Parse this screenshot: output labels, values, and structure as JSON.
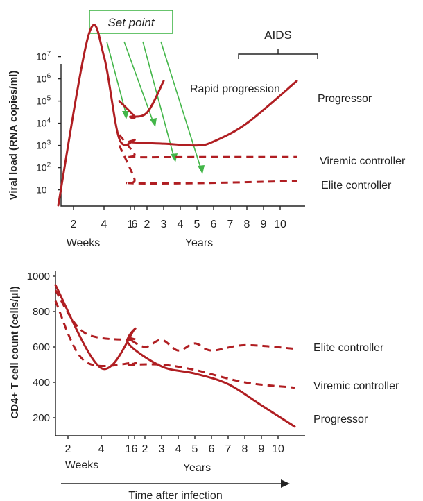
{
  "figure": {
    "title": "",
    "set_point_label": "Set point",
    "aids_label": "AIDS",
    "time_label": "Time after infection"
  },
  "chart_data": [
    {
      "type": "line",
      "ylabel": "Viral load (RNA copies/ml)",
      "y_scale": "log",
      "yticks": [
        {
          "label": "10",
          "base": "10",
          "exp": "",
          "value": 10
        },
        {
          "label": "10²",
          "base": "10",
          "exp": "2",
          "value": 100
        },
        {
          "label": "10³",
          "base": "10",
          "exp": "3",
          "value": 1000
        },
        {
          "label": "10⁴",
          "base": "10",
          "exp": "4",
          "value": 10000
        },
        {
          "label": "10⁵",
          "base": "10",
          "exp": "5",
          "value": 100000
        },
        {
          "label": "10⁶",
          "base": "10",
          "exp": "6",
          "value": 1000000
        },
        {
          "label": "10⁷",
          "base": "10",
          "exp": "7",
          "value": 10000000
        }
      ],
      "xticks_weeks": [
        "2",
        "4",
        "6"
      ],
      "xticks_years": [
        "1",
        "2",
        "3",
        "4",
        "5",
        "6",
        "7",
        "8",
        "9",
        "10"
      ],
      "x_week_label": "Weeks",
      "x_year_label": "Years",
      "annotations": [
        "Rapid progression"
      ],
      "series": [
        {
          "name": "Progressor",
          "style": "solid",
          "points": [
            [
              "1 week",
              2
            ],
            [
              "3 weeks",
              100000000
            ],
            [
              "4 weeks",
              10000000
            ],
            [
              "5 weeks",
              2000
            ],
            [
              "6 weeks",
              1800
            ],
            [
              "1 year",
              1400
            ],
            [
              "3 years",
              1200
            ],
            [
              "5 years",
              1000
            ],
            [
              "6 years",
              1500
            ],
            [
              "8 years",
              10000
            ],
            [
              "11 years",
              800000
            ]
          ]
        },
        {
          "name": "Rapid progression",
          "style": "solid",
          "points": [
            [
              "5 weeks",
              100000
            ],
            [
              "6 weeks",
              20000
            ],
            [
              "1 year",
              20000
            ],
            [
              "2 years",
              30000
            ],
            [
              "3 years",
              800000
            ]
          ]
        },
        {
          "name": "Viremic controller",
          "style": "dashed",
          "points": [
            [
              "5 weeks",
              3000
            ],
            [
              "6 weeks",
              400
            ],
            [
              "1 year",
              300
            ],
            [
              "5 years",
              300
            ],
            [
              "11 years",
              300
            ]
          ]
        },
        {
          "name": "Elite controller",
          "style": "dashed",
          "points": [
            [
              "5 weeks",
              1000
            ],
            [
              "6 weeks",
              30
            ],
            [
              "1 year",
              20
            ],
            [
              "5 years",
              20
            ],
            [
              "11 years",
              25
            ]
          ]
        }
      ]
    },
    {
      "type": "line",
      "ylabel": "CD4+ T cell count (cells/μl)",
      "yticks": [
        200,
        400,
        600,
        800,
        1000
      ],
      "ylim": [
        100,
        1000
      ],
      "xticks_weeks": [
        "2",
        "4",
        "6"
      ],
      "xticks_years": [
        "1",
        "2",
        "3",
        "4",
        "5",
        "6",
        "7",
        "8",
        "9",
        "10"
      ],
      "x_week_label": "Weeks",
      "x_year_label": "Years",
      "series": [
        {
          "name": "Elite controller",
          "style": "dashed",
          "points": [
            [
              "0",
              920
            ],
            [
              "3 weeks",
              680
            ],
            [
              "6 weeks",
              640
            ],
            [
              "1 year",
              650
            ],
            [
              "2 years",
              600
            ],
            [
              "3 years",
              640
            ],
            [
              "4 years",
              580
            ],
            [
              "5 years",
              620
            ],
            [
              "6 years",
              580
            ],
            [
              "8 years",
              610
            ],
            [
              "11 years",
              590
            ]
          ]
        },
        {
          "name": "Viremic controller",
          "style": "dashed",
          "points": [
            [
              "0",
              860
            ],
            [
              "3 weeks",
              520
            ],
            [
              "6 weeks",
              510
            ],
            [
              "1 year",
              500
            ],
            [
              "3 years",
              500
            ],
            [
              "5 years",
              470
            ],
            [
              "8 years",
              400
            ],
            [
              "11 years",
              370
            ]
          ]
        },
        {
          "name": "Progressor",
          "style": "solid",
          "points": [
            [
              "0",
              950
            ],
            [
              "4 weeks",
              480
            ],
            [
              "6 weeks",
              700
            ],
            [
              "1 year",
              620
            ],
            [
              "3 years",
              490
            ],
            [
              "5 years",
              450
            ],
            [
              "7 years",
              390
            ],
            [
              "9 years",
              270
            ],
            [
              "11 years",
              150
            ]
          ]
        }
      ]
    }
  ]
}
